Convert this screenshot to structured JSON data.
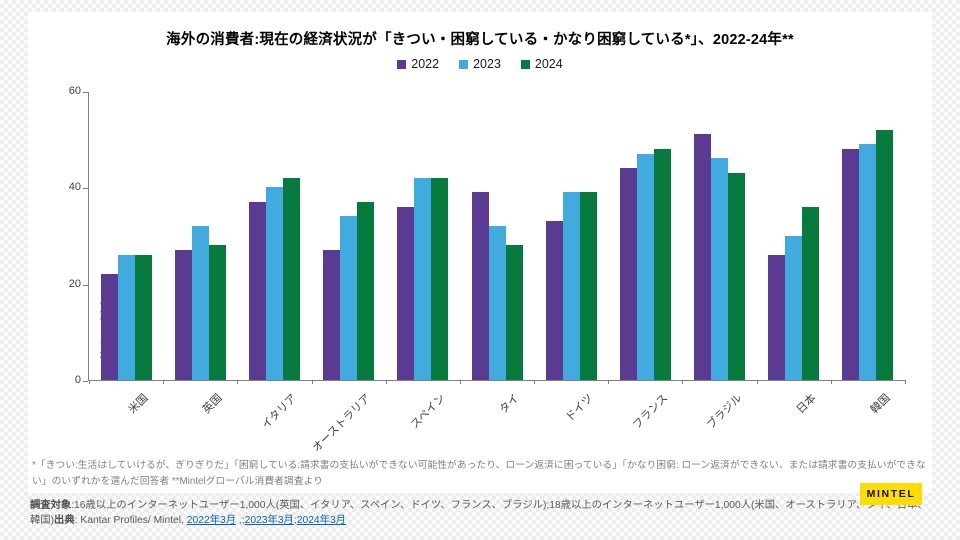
{
  "slide": {
    "title": "海外の消費者:現在の経済状況が「きつい・困窮している・かなり困窮している*」、2022-24年**",
    "footnote": "*「きつい:生活はしていけるが、ぎりぎりだ」「困窮している:請求書の支払いができない可能性があったり、ローン返済に困っている」「かなり困窮: ローン返済ができない、または請求書の支払いができない」のいずれかを選んだ回答者 **Mintelグローバル消費者調査より"
  },
  "chart_data": {
    "type": "bar",
    "title": "海外の消費者:現在の経済状況が「きつい・困窮している・かなり困窮している*」、2022-24年**",
    "xlabel": "",
    "ylabel": "回答者の割合(%)",
    "ylim": [
      0,
      60
    ],
    "yticks": [
      0,
      20,
      40,
      60
    ],
    "grid": false,
    "legend_position": "top",
    "categories": [
      "米国",
      "英国",
      "イタリア",
      "オーストラリア",
      "スペイン",
      "タイ",
      "ドイツ",
      "フランス",
      "ブラジル",
      "日本",
      "韓国"
    ],
    "series": [
      {
        "name": "2022",
        "color": "#5B3A92",
        "values": [
          22,
          27,
          37,
          27,
          36,
          39,
          33,
          44,
          51,
          26,
          48
        ]
      },
      {
        "name": "2023",
        "color": "#41AADF",
        "values": [
          26,
          32,
          40,
          34,
          42,
          32,
          39,
          47,
          46,
          30,
          49
        ]
      },
      {
        "name": "2024",
        "color": "#077A3E",
        "values": [
          26,
          28,
          42,
          37,
          42,
          28,
          39,
          48,
          43,
          36,
          52
        ]
      }
    ]
  },
  "footer": {
    "label_target": "調査対象",
    "text_target": ":16歳以上のインターネットユーザー1,000人(英国、イタリア、スペイン、ドイツ、フランス、ブラジル);18歳以上のインターネットユーザー1,000人(米国、オーストラリア、タイ、日本、韓国)",
    "label_source": "出典",
    "text_source": ": Kantar Profiles/ Mintel, ",
    "link_2022": "2022年3月",
    "sep_1": " ,;",
    "link_2023": "2023年3月",
    "sep_2": ";",
    "link_2024": "2024年3月"
  },
  "logo": {
    "label": "MINTEL",
    "bg_color": "#FFDD00"
  }
}
